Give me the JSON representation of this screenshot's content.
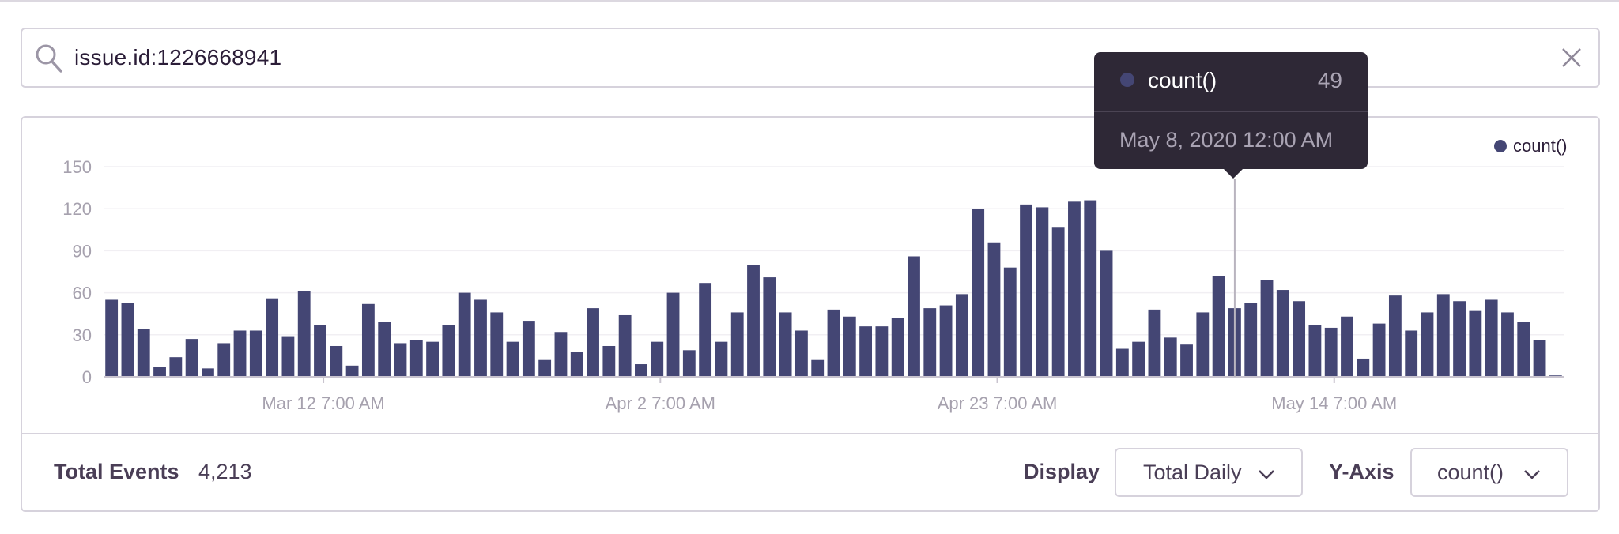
{
  "search": {
    "query": "issue.id:1226668941"
  },
  "chart_data": {
    "type": "bar",
    "title": "",
    "xlabel": "",
    "ylabel": "",
    "ylim": [
      0,
      150
    ],
    "yticks": [
      0,
      30,
      60,
      90,
      120,
      150
    ],
    "ytick_labels": [
      "0",
      "30",
      "60",
      "90",
      "120",
      "150"
    ],
    "xtick_labels": [
      "Mar 12 7:00 AM",
      "Apr 2 7:00 AM",
      "Apr 23 7:00 AM",
      "May 14 7:00 AM"
    ],
    "xtick_indices": [
      13.7,
      34.7,
      55.7,
      76.7
    ],
    "grid": true,
    "legend": "top-right",
    "series": [
      {
        "name": "count()",
        "color": "#444674",
        "values": [
          55,
          53,
          34,
          7,
          14,
          27,
          6,
          24,
          33,
          33,
          56,
          29,
          61,
          37,
          22,
          8,
          52,
          39,
          24,
          26,
          25,
          37,
          60,
          55,
          46,
          25,
          40,
          12,
          32,
          18,
          49,
          22,
          44,
          9,
          25,
          60,
          19,
          67,
          25,
          46,
          80,
          71,
          46,
          33,
          12,
          48,
          43,
          36,
          36,
          42,
          86,
          49,
          51,
          59,
          120,
          96,
          78,
          123,
          121,
          107,
          125,
          126,
          90,
          20,
          25,
          48,
          28,
          23,
          46,
          72,
          49,
          53,
          69,
          62,
          54,
          37,
          35,
          43,
          13,
          38,
          58,
          33,
          46,
          59,
          54,
          47,
          55,
          46,
          39,
          26,
          1
        ]
      }
    ]
  },
  "tooltip": {
    "series": "count()",
    "value": "49",
    "date": "May 8, 2020 12:00 AM",
    "index": 70
  },
  "legend": {
    "label": "count()"
  },
  "footer": {
    "total_label": "Total Events",
    "total_value": "4,213",
    "display_label": "Display",
    "display_value": "Total Daily",
    "yaxis_label": "Y-Axis",
    "yaxis_value": "count()"
  },
  "colors": {
    "bar": "#444674",
    "axis_text": "#a6a1ae",
    "tooltip_bg": "#2e2836"
  }
}
